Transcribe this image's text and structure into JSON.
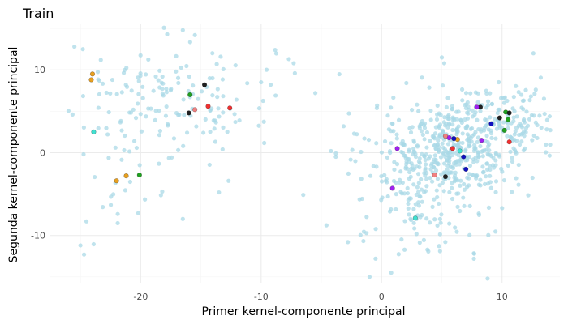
{
  "chart_data": {
    "type": "scatter",
    "title": "Train",
    "xlabel": "Primer kernel-componente principal",
    "ylabel": "Segunda kernel-componente principal",
    "xlim": [
      -27.5,
      14.8
    ],
    "ylim": [
      -15.8,
      15.5
    ],
    "xticks": [
      -20,
      -10,
      0,
      10
    ],
    "yticks": [
      -10,
      0,
      10
    ],
    "xtick_labels": [
      "-20",
      "-10",
      "0",
      "10"
    ],
    "ytick_labels": [
      "-10",
      "0",
      "10"
    ],
    "grid": true,
    "legend": "none",
    "colors": {
      "background": "#a8d8e6",
      "orange": "#e8a020",
      "red": "#f03030",
      "green": "#20a020",
      "black": "#202020",
      "purple": "#a020f0",
      "blue": "#1010c0",
      "pink": "#f08080",
      "cyan": "#40e0d0"
    },
    "background_series": {
      "color": "#a8d8e6",
      "clusters": [
        {
          "center": [
            -18,
            7
          ],
          "spread": [
            4.5,
            3.2
          ],
          "count": 150
        },
        {
          "center": [
            -21,
            -2
          ],
          "spread": [
            2.5,
            3.5
          ],
          "count": 30
        },
        {
          "center": [
            5.5,
            0
          ],
          "spread": [
            3.2,
            3.0
          ],
          "count": 430
        },
        {
          "center": [
            10,
            4
          ],
          "spread": [
            2.3,
            2.0
          ],
          "count": 160
        },
        {
          "center": [
            3.5,
            -7
          ],
          "spread": [
            3.5,
            3.0
          ],
          "count": 90
        }
      ],
      "points": [
        [
          -25.5,
          12.8
        ],
        [
          -24.8,
          12.5
        ],
        [
          -16.5,
          14.8
        ],
        [
          -15.5,
          14.2
        ],
        [
          -17.8,
          14.3
        ],
        [
          -25,
          -11.2
        ],
        [
          -24.7,
          -12.3
        ],
        [
          -24.5,
          -8.3
        ],
        [
          -20.2,
          -7.3
        ],
        [
          -16.5,
          -8
        ],
        [
          -6.5,
          -5.1
        ],
        [
          -4.2,
          0.2
        ],
        [
          -3.8,
          -0.5
        ],
        [
          -5.5,
          7.2
        ],
        [
          -7.3,
          10.8
        ],
        [
          -7.7,
          11.3
        ],
        [
          -7.2,
          9.6
        ],
        [
          -8.8,
          6.9
        ],
        [
          -10,
          8.5
        ],
        [
          -11.8,
          3.9
        ],
        [
          -13.2,
          0.4
        ],
        [
          -12.7,
          -3.4
        ],
        [
          5.0,
          11.5
        ],
        [
          5.2,
          10.8
        ],
        [
          12.6,
          12.0
        ],
        [
          12.8,
          7.6
        ],
        [
          12.4,
          6.8
        ],
        [
          8.8,
          -15.2
        ],
        [
          -2.8,
          -10.8
        ],
        [
          -0.5,
          -12.8
        ],
        [
          0.8,
          -14.5
        ],
        [
          -1.0,
          -15.0
        ],
        [
          2.4,
          -8.0
        ],
        [
          2.9,
          -8.0
        ],
        [
          -13.5,
          -4.8
        ]
      ]
    },
    "highlighted": [
      {
        "color": "orange",
        "points": [
          [
            -24,
            9.5
          ],
          [
            -24.1,
            8.8
          ],
          [
            -21.2,
            -2.8
          ],
          [
            -22,
            -3.4
          ],
          [
            6.3,
            1.6
          ]
        ]
      },
      {
        "color": "red",
        "points": [
          [
            -14.4,
            5.6
          ],
          [
            -12.6,
            5.4
          ],
          [
            5.9,
            0.5
          ],
          [
            10.6,
            1.3
          ]
        ]
      },
      {
        "color": "green",
        "points": [
          [
            -15.9,
            7.0
          ],
          [
            -20.1,
            -2.7
          ],
          [
            10.2,
            2.7
          ],
          [
            10.5,
            4.0
          ],
          [
            10.3,
            4.9
          ]
        ]
      },
      {
        "color": "black",
        "points": [
          [
            -14.7,
            8.2
          ],
          [
            -16.0,
            4.8
          ],
          [
            8.2,
            5.5
          ],
          [
            9.8,
            4.2
          ],
          [
            10.6,
            4.8
          ],
          [
            5.3,
            -2.9
          ]
        ]
      },
      {
        "color": "purple",
        "points": [
          [
            1.3,
            0.5
          ],
          [
            0.9,
            -4.3
          ],
          [
            5.6,
            1.8
          ],
          [
            8.3,
            1.5
          ],
          [
            7.9,
            5.5
          ]
        ]
      },
      {
        "color": "blue",
        "points": [
          [
            6.8,
            -0.5
          ],
          [
            7.0,
            -2.0
          ],
          [
            9.1,
            3.5
          ],
          [
            6.0,
            1.7
          ]
        ]
      },
      {
        "color": "pink",
        "points": [
          [
            -15.5,
            5.2
          ],
          [
            4.4,
            -2.7
          ],
          [
            5.3,
            2.0
          ]
        ]
      },
      {
        "color": "cyan",
        "points": [
          [
            -23.9,
            2.5
          ],
          [
            2.8,
            -7.9
          ],
          [
            6.5,
            0.2
          ]
        ]
      }
    ]
  }
}
